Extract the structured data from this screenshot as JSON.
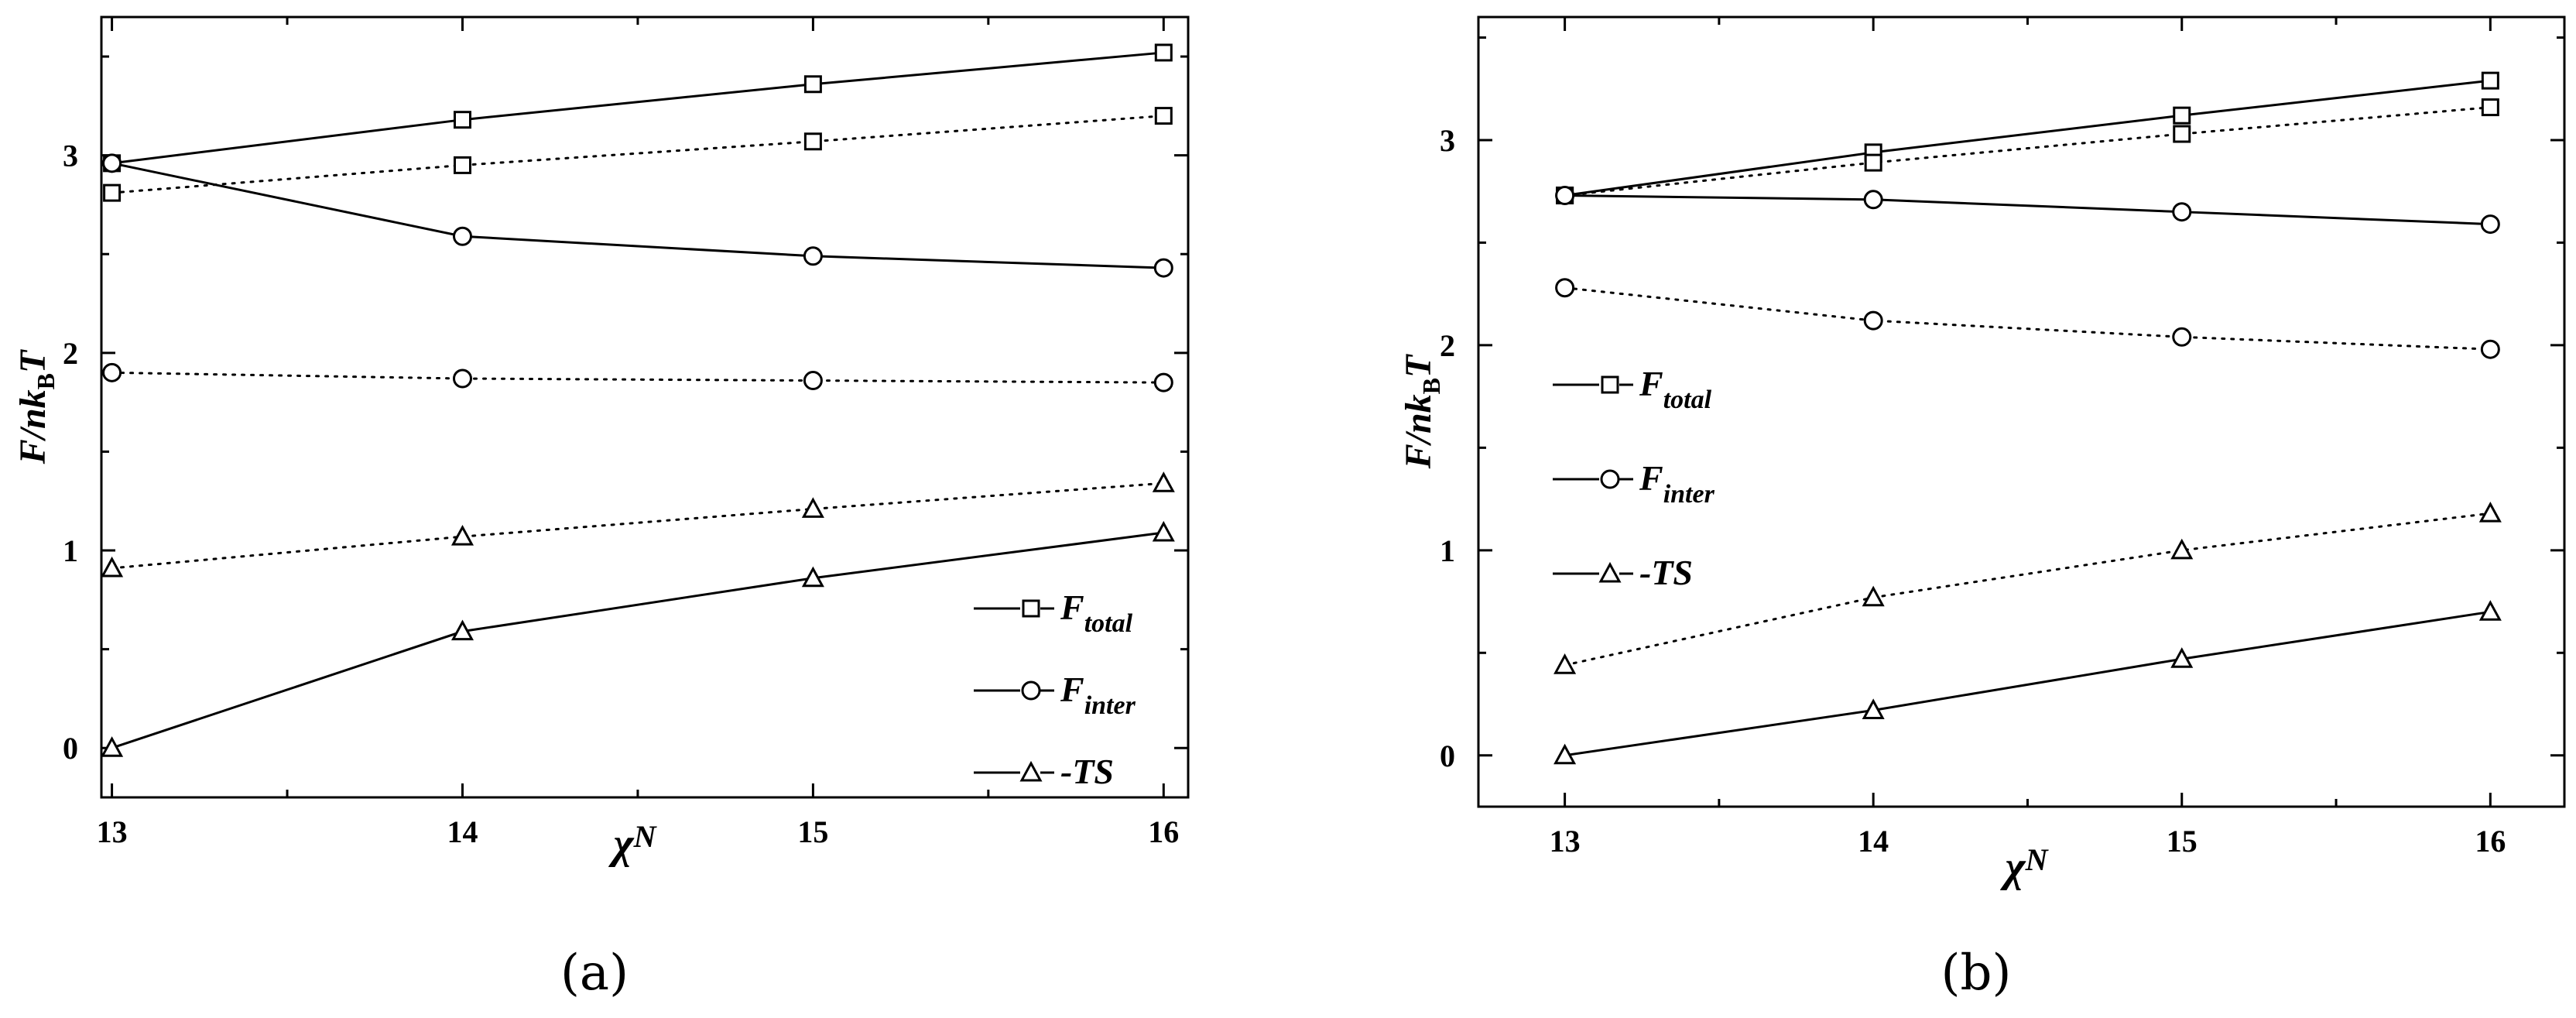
{
  "chart_data": [
    {
      "type": "line",
      "panel_label": "(a)",
      "xlabel": "χN",
      "ylabel": "F/nk_BT",
      "ylabel_parts": [
        "F/nk",
        "B",
        "T"
      ],
      "xlabel_parts": [
        "χ",
        "N"
      ],
      "x": [
        13,
        14,
        15,
        16
      ],
      "xlim": [
        12.97,
        16.07
      ],
      "ylim": [
        -0.25,
        3.7
      ],
      "x_ticks": [
        13,
        14,
        15,
        16
      ],
      "y_ticks": [
        0,
        1,
        2,
        3
      ],
      "series": [
        {
          "name": "F_total",
          "label_main": "F",
          "label_sub": "total",
          "marker": "square",
          "style": "solid",
          "values": [
            2.96,
            3.18,
            3.36,
            3.52
          ],
          "in_legend": true
        },
        {
          "name": "F_total",
          "marker": "square",
          "style": "dotted",
          "values": [
            2.81,
            2.95,
            3.07,
            3.2
          ],
          "in_legend": false
        },
        {
          "name": "F_inter",
          "label_main": "F",
          "label_sub": "inter",
          "marker": "circle",
          "style": "solid",
          "values": [
            2.96,
            2.59,
            2.49,
            2.43
          ],
          "in_legend": true
        },
        {
          "name": "F_inter",
          "marker": "circle",
          "style": "dotted",
          "values": [
            1.9,
            1.87,
            1.86,
            1.85
          ],
          "in_legend": false
        },
        {
          "name": "-TS",
          "label_main": "-TS",
          "label_sub": "",
          "marker": "triangle",
          "style": "solid",
          "values": [
            0.0,
            0.59,
            0.86,
            1.09
          ],
          "in_legend": true
        },
        {
          "name": "-TS",
          "marker": "triangle",
          "style": "dotted",
          "values": [
            0.91,
            1.07,
            1.21,
            1.34
          ],
          "in_legend": false
        }
      ],
      "legend_placement": "bottom-right"
    },
    {
      "type": "line",
      "panel_label": "(b)",
      "xlabel": "χN",
      "ylabel": "F/nk_BT",
      "ylabel_parts": [
        "F/nk",
        "B",
        "T"
      ],
      "xlabel_parts": [
        "χ",
        "N"
      ],
      "x": [
        13,
        14,
        15,
        16
      ],
      "xlim": [
        12.72,
        16.24
      ],
      "ylim": [
        -0.25,
        3.6
      ],
      "x_ticks": [
        13,
        14,
        15,
        16
      ],
      "y_ticks": [
        0,
        1,
        2,
        3
      ],
      "series": [
        {
          "name": "F_total",
          "label_main": "F",
          "label_sub": "total",
          "marker": "square",
          "style": "solid",
          "values": [
            2.73,
            2.94,
            3.12,
            3.29
          ],
          "in_legend": true
        },
        {
          "name": "F_total",
          "marker": "square",
          "style": "dotted",
          "values": [
            2.73,
            2.89,
            3.03,
            3.16
          ],
          "in_legend": false
        },
        {
          "name": "F_inter",
          "label_main": "F",
          "label_sub": "inter",
          "marker": "circle",
          "style": "solid",
          "values": [
            2.73,
            2.71,
            2.65,
            2.59
          ],
          "in_legend": true
        },
        {
          "name": "F_inter",
          "marker": "circle",
          "style": "dotted",
          "values": [
            2.28,
            2.12,
            2.04,
            1.98
          ],
          "in_legend": false
        },
        {
          "name": "-TS",
          "label_main": "-TS",
          "label_sub": "",
          "marker": "triangle",
          "style": "solid",
          "values": [
            0.0,
            0.22,
            0.47,
            0.7
          ],
          "in_legend": true
        },
        {
          "name": "-TS",
          "marker": "triangle",
          "style": "dotted",
          "values": [
            0.44,
            0.77,
            1.0,
            1.18
          ],
          "in_legend": false
        }
      ],
      "legend_placement": "middle-left"
    }
  ]
}
